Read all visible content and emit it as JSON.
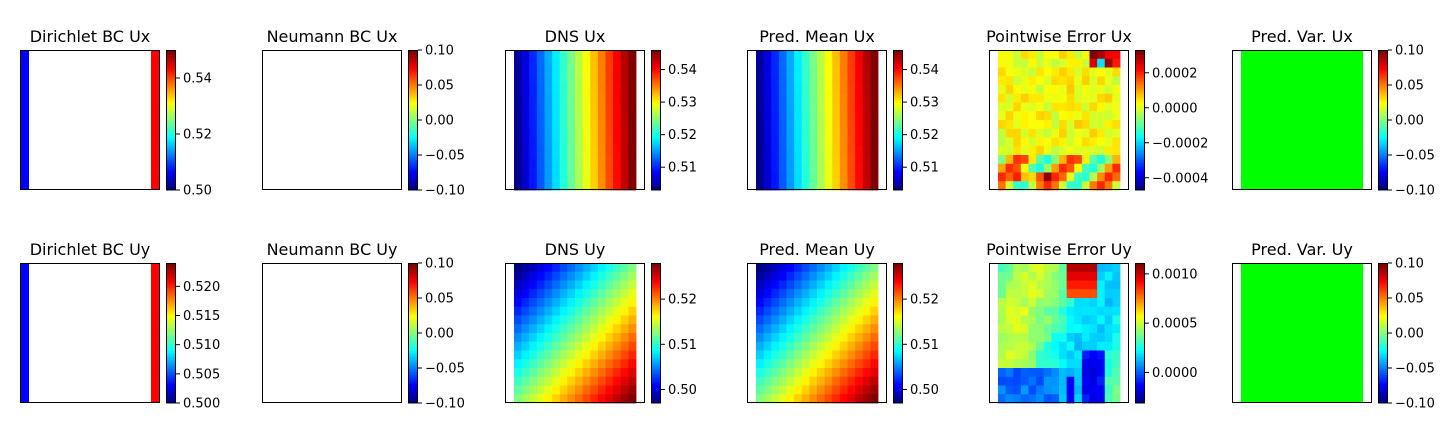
{
  "figure": {
    "panels": [
      {
        "title": "Dirichlet BC Ux",
        "kind": "bc",
        "cbar": {
          "min": 0.5,
          "max": 0.55,
          "ticks": [
            0.5,
            0.52,
            0.54
          ],
          "tick_labels": [
            "0.50",
            "0.52",
            "0.54"
          ]
        },
        "field": {
          "type": "bc"
        }
      },
      {
        "title": "Neumann BC Ux",
        "kind": "empty",
        "cbar": {
          "min": -0.1,
          "max": 0.1,
          "ticks": [
            -0.1,
            -0.05,
            0.0,
            0.05,
            0.1
          ],
          "tick_labels": [
            "−0.10",
            "−0.05",
            "0.00",
            "0.05",
            "0.10"
          ]
        },
        "field": {
          "type": "empty"
        }
      },
      {
        "title": "DNS Ux",
        "kind": "field",
        "cbar": {
          "min": 0.503,
          "max": 0.546,
          "ticks": [
            0.51,
            0.52,
            0.53,
            0.54
          ],
          "tick_labels": [
            "0.51",
            "0.52",
            "0.53",
            "0.54"
          ]
        },
        "field": {
          "type": "ramp_x",
          "lo": 0.503,
          "hi": 0.546
        }
      },
      {
        "title": "Pred. Mean Ux",
        "kind": "field",
        "cbar": {
          "min": 0.503,
          "max": 0.546,
          "ticks": [
            0.51,
            0.52,
            0.53,
            0.54
          ],
          "tick_labels": [
            "0.51",
            "0.52",
            "0.53",
            "0.54"
          ]
        },
        "field": {
          "type": "ramp_x",
          "lo": 0.503,
          "hi": 0.546
        }
      },
      {
        "title": "Pointwise Error Ux",
        "kind": "field",
        "cbar": {
          "min": -0.00047,
          "max": 0.00033,
          "ticks": [
            -0.0004,
            -0.0002,
            0.0,
            0.0002
          ],
          "tick_labels": [
            "−0.0004",
            "−0.0002",
            "0.0000",
            "0.0002"
          ]
        },
        "field": {
          "type": "err_ux"
        }
      },
      {
        "title": "Pred. Var. Ux",
        "kind": "const",
        "cbar": {
          "min": -0.1,
          "max": 0.1,
          "ticks": [
            -0.1,
            -0.05,
            0.0,
            0.05,
            0.1
          ],
          "tick_labels": [
            "−0.10",
            "−0.05",
            "0.00",
            "0.05",
            "0.10"
          ]
        },
        "field": {
          "type": "const",
          "value": 0.0
        }
      },
      {
        "title": "Dirichlet BC Uy",
        "kind": "bc",
        "cbar": {
          "min": 0.5,
          "max": 0.524,
          "ticks": [
            0.5,
            0.505,
            0.51,
            0.515,
            0.52
          ],
          "tick_labels": [
            "0.500",
            "0.505",
            "0.510",
            "0.515",
            "0.520"
          ]
        },
        "field": {
          "type": "bc"
        }
      },
      {
        "title": "Neumann BC Uy",
        "kind": "empty",
        "cbar": {
          "min": -0.1,
          "max": 0.1,
          "ticks": [
            -0.1,
            -0.05,
            0.0,
            0.05,
            0.1
          ],
          "tick_labels": [
            "−0.10",
            "−0.05",
            "0.00",
            "0.05",
            "0.10"
          ]
        },
        "field": {
          "type": "empty"
        }
      },
      {
        "title": "DNS Uy",
        "kind": "field",
        "cbar": {
          "min": 0.497,
          "max": 0.528,
          "ticks": [
            0.5,
            0.51,
            0.52
          ],
          "tick_labels": [
            "0.50",
            "0.51",
            "0.52"
          ]
        },
        "field": {
          "type": "ramp_diag",
          "lo": 0.497,
          "hi": 0.528
        }
      },
      {
        "title": "Pred. Mean Uy",
        "kind": "field",
        "cbar": {
          "min": 0.497,
          "max": 0.528,
          "ticks": [
            0.5,
            0.51,
            0.52
          ],
          "tick_labels": [
            "0.50",
            "0.51",
            "0.52"
          ]
        },
        "field": {
          "type": "ramp_diag",
          "lo": 0.497,
          "hi": 0.528
        }
      },
      {
        "title": "Pointwise Error Uy",
        "kind": "field",
        "cbar": {
          "min": -0.00031,
          "max": 0.00111,
          "ticks": [
            0.0,
            0.0005,
            0.001
          ],
          "tick_labels": [
            "0.0000",
            "0.0005",
            "0.0010"
          ]
        },
        "field": {
          "type": "err_uy"
        }
      },
      {
        "title": "Pred. Var. Uy",
        "kind": "const",
        "cbar": {
          "min": -0.1,
          "max": 0.1,
          "ticks": [
            -0.1,
            -0.05,
            0.0,
            0.05,
            0.1
          ],
          "tick_labels": [
            "−0.10",
            "−0.05",
            "0.00",
            "0.05",
            "0.10"
          ]
        },
        "field": {
          "type": "const",
          "value": 0.0
        }
      }
    ]
  },
  "chart_data": {
    "type": "heatmap",
    "colormap": "jet",
    "grid_size": 16,
    "panels": [
      {
        "title": "Dirichlet BC Ux",
        "colorbar_range": [
          0.5,
          0.55
        ],
        "left_edge_value": 0.5,
        "right_edge_value": 0.55
      },
      {
        "title": "Neumann BC Ux",
        "colorbar_range": [
          -0.1,
          0.1
        ]
      },
      {
        "title": "DNS Ux",
        "colorbar_range": [
          0.503,
          0.546
        ],
        "pattern": "increases left to right"
      },
      {
        "title": "Pred. Mean Ux",
        "colorbar_range": [
          0.503,
          0.546
        ],
        "pattern": "increases left to right"
      },
      {
        "title": "Pointwise Error Ux",
        "colorbar_range": [
          -0.00047,
          0.00033
        ]
      },
      {
        "title": "Pred. Var. Ux",
        "colorbar_range": [
          -0.1,
          0.1
        ],
        "value": 0.0
      },
      {
        "title": "Dirichlet BC Uy",
        "colorbar_range": [
          0.5,
          0.524
        ],
        "left_edge_value": 0.5,
        "right_edge_value": 0.524
      },
      {
        "title": "Neumann BC Uy",
        "colorbar_range": [
          -0.1,
          0.1
        ]
      },
      {
        "title": "DNS Uy",
        "colorbar_range": [
          0.497,
          0.528
        ],
        "pattern": "increases toward bottom-right"
      },
      {
        "title": "Pred. Mean Uy",
        "colorbar_range": [
          0.497,
          0.528
        ],
        "pattern": "increases toward bottom-right"
      },
      {
        "title": "Pointwise Error Uy",
        "colorbar_range": [
          -0.00031,
          0.00111
        ]
      },
      {
        "title": "Pred. Var. Uy",
        "colorbar_range": [
          -0.1,
          0.1
        ],
        "value": 0.0
      }
    ]
  }
}
